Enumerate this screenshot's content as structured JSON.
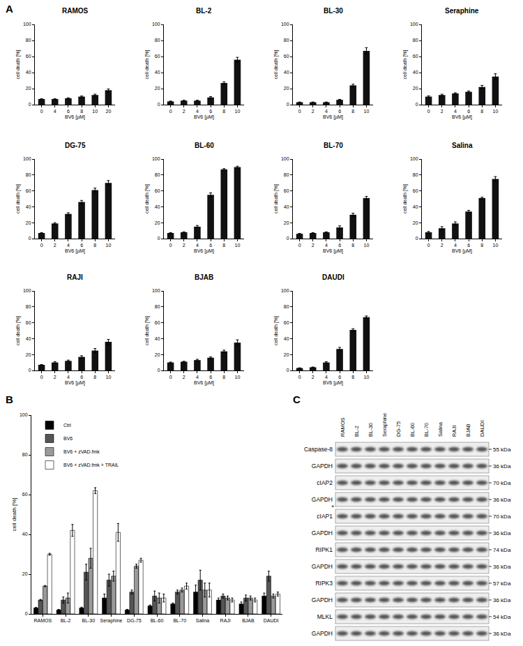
{
  "panel_labels": [
    "A",
    "B",
    "C"
  ],
  "chart_data": [
    {
      "type": "bar",
      "title": "RAMOS",
      "categories": [
        "0",
        "4",
        "6",
        "8",
        "10",
        "20"
      ],
      "values": [
        7,
        7,
        8,
        10,
        12,
        18
      ],
      "errors": [
        0.5,
        0.5,
        0.6,
        0.8,
        1,
        1.5
      ],
      "color": "#111111",
      "x_label": "BV6 [µM]",
      "y_label": "cell death [%]",
      "ylim": [
        0,
        100
      ],
      "yticks": [
        0,
        20,
        40,
        60,
        80,
        100
      ],
      "grid": false
    },
    {
      "type": "bar",
      "title": "BL-2",
      "categories": [
        "0",
        "2",
        "4",
        "6",
        "8",
        "10"
      ],
      "values": [
        4,
        5,
        5,
        9,
        27,
        56
      ],
      "errors": [
        0.5,
        0.5,
        0.5,
        1,
        1.5,
        3
      ],
      "color": "#111111",
      "x_label": "BV6 [µM]",
      "y_label": "cell death [%]",
      "ylim": [
        0,
        100
      ],
      "yticks": [
        0,
        20,
        40,
        60,
        80,
        100
      ],
      "grid": false
    },
    {
      "type": "bar",
      "title": "BL-30",
      "categories": [
        "0",
        "2",
        "4",
        "6",
        "8",
        "10"
      ],
      "values": [
        3,
        3,
        3,
        6,
        24,
        67
      ],
      "errors": [
        0.3,
        0.3,
        0.3,
        0.6,
        1.5,
        4
      ],
      "color": "#111111",
      "x_label": "BV6 [µM]",
      "y_label": "cell death [%]",
      "ylim": [
        0,
        100
      ],
      "yticks": [
        0,
        20,
        40,
        60,
        80,
        100
      ],
      "grid": false
    },
    {
      "type": "bar",
      "title": "Seraphine",
      "categories": [
        "0",
        "2",
        "4",
        "6",
        "8",
        "10"
      ],
      "values": [
        10,
        12,
        14,
        16,
        22,
        35
      ],
      "errors": [
        1,
        1,
        0.8,
        1,
        2,
        3.5
      ],
      "color": "#111111",
      "x_label": "BV6 [µM]",
      "y_label": "cell death [%]",
      "ylim": [
        0,
        100
      ],
      "yticks": [
        0,
        20,
        40,
        60,
        80,
        100
      ],
      "grid": false
    },
    {
      "type": "bar",
      "title": "DG-75",
      "categories": [
        "0",
        "2",
        "4",
        "6",
        "8",
        "10"
      ],
      "values": [
        7,
        19,
        31,
        46,
        61,
        70
      ],
      "errors": [
        0.5,
        1,
        1.5,
        2,
        2.5,
        3
      ],
      "color": "#111111",
      "x_label": "BV6 [µM]",
      "y_label": "cell death [%]",
      "ylim": [
        0,
        100
      ],
      "yticks": [
        0,
        20,
        40,
        60,
        80,
        100
      ],
      "grid": false
    },
    {
      "type": "bar",
      "title": "BL-60",
      "categories": [
        "0",
        "2",
        "4",
        "6",
        "8",
        "10"
      ],
      "values": [
        7,
        8,
        15,
        55,
        87,
        90
      ],
      "errors": [
        0.5,
        0.5,
        1.5,
        2.5,
        1,
        1
      ],
      "color": "#111111",
      "x_label": "BV6 [µM]",
      "y_label": "cell death [%]",
      "ylim": [
        0,
        100
      ],
      "yticks": [
        0,
        20,
        40,
        60,
        80,
        100
      ],
      "grid": false
    },
    {
      "type": "bar",
      "title": "BL-70",
      "categories": [
        "0",
        "2",
        "4",
        "6",
        "8",
        "10"
      ],
      "values": [
        6,
        7,
        8,
        14,
        30,
        51
      ],
      "errors": [
        0.5,
        0.5,
        0.5,
        2,
        2,
        2
      ],
      "color": "#111111",
      "x_label": "BV6 [µM]",
      "y_label": "cell death [%]",
      "ylim": [
        0,
        100
      ],
      "yticks": [
        0,
        20,
        40,
        60,
        80,
        100
      ],
      "grid": false
    },
    {
      "type": "bar",
      "title": "Salina",
      "categories": [
        "0",
        "2",
        "4",
        "6",
        "8",
        "10"
      ],
      "values": [
        8,
        13,
        19,
        34,
        51,
        75
      ],
      "errors": [
        1,
        2,
        2,
        1.5,
        1,
        3
      ],
      "color": "#111111",
      "x_label": "BV6 [µM]",
      "y_label": "cell death [%]",
      "ylim": [
        0,
        100
      ],
      "yticks": [
        0,
        20,
        40,
        60,
        80,
        100
      ],
      "grid": false
    },
    {
      "type": "bar",
      "title": "RAJI",
      "categories": [
        "0",
        "2",
        "4",
        "6",
        "8",
        "10"
      ],
      "values": [
        7,
        10,
        12,
        17,
        25,
        36
      ],
      "errors": [
        0.5,
        1,
        1,
        1.5,
        2.5,
        3
      ],
      "color": "#111111",
      "x_label": "BV6 [µM]",
      "y_label": "cell death [%]",
      "ylim": [
        0,
        100
      ],
      "yticks": [
        0,
        20,
        40,
        60,
        80,
        100
      ],
      "grid": false
    },
    {
      "type": "bar",
      "title": "BJAB",
      "categories": [
        "0",
        "2",
        "4",
        "6",
        "8",
        "10"
      ],
      "values": [
        10,
        11,
        13,
        16,
        24,
        35
      ],
      "errors": [
        0.5,
        0.5,
        1,
        1,
        1.5,
        3.5
      ],
      "color": "#111111",
      "x_label": "BV6 [µM]",
      "y_label": "cell death [%]",
      "ylim": [
        0,
        100
      ],
      "yticks": [
        0,
        20,
        40,
        60,
        80,
        100
      ],
      "grid": false
    },
    {
      "type": "bar",
      "title": "DAUDI",
      "categories": [
        "0",
        "2",
        "4",
        "6",
        "8",
        "10"
      ],
      "values": [
        3,
        4,
        10,
        27,
        51,
        67
      ],
      "errors": [
        0.3,
        0.3,
        1,
        2,
        1.5,
        1.5
      ],
      "color": "#111111",
      "x_label": "BV6 [µM]",
      "y_label": "cell death [%]",
      "ylim": [
        0,
        100
      ],
      "yticks": [
        0,
        20,
        40,
        60,
        80,
        100
      ],
      "grid": false
    },
    {
      "type": "bar",
      "categories": [
        "RAMOS",
        "BL-2",
        "BL-30",
        "Seraphine",
        "DG-75",
        "BL-60",
        "BL-70",
        "Salina",
        "RAJI",
        "BJAB",
        "DAUDI"
      ],
      "series": [
        {
          "name": "Ctrl",
          "color": "#000000",
          "values": [
            3,
            2,
            3,
            8,
            2,
            4,
            5,
            11,
            7,
            5,
            9
          ],
          "errors": [
            0.3,
            0.3,
            0.4,
            2,
            0.3,
            0.5,
            0.5,
            3.5,
            1,
            1,
            1.5
          ]
        },
        {
          "name": "BV6",
          "color": "#555555",
          "values": [
            7,
            7,
            21,
            17,
            11,
            9,
            11,
            17,
            9,
            8,
            19
          ],
          "errors": [
            0.3,
            1.5,
            4,
            3,
            1,
            2.5,
            1,
            5,
            1,
            1.5,
            2.5
          ]
        },
        {
          "name": "BV6 + zVAD.fmk",
          "color": "#9a9a9a",
          "values": [
            14,
            8,
            28,
            19,
            24,
            8,
            12,
            12,
            8,
            8,
            9
          ],
          "errors": [
            0.3,
            2.5,
            5,
            2.5,
            1,
            2.5,
            1,
            3.5,
            1,
            1,
            1
          ]
        },
        {
          "name": "BV6 + zVAD.fmk + TRAIL",
          "color": "#ffffff",
          "values": [
            30,
            42,
            62,
            41,
            27,
            8,
            14,
            12,
            7,
            7,
            10
          ],
          "errors": [
            0.5,
            3,
            1.5,
            4.5,
            1,
            2,
            1.5,
            3.5,
            1,
            1,
            1
          ]
        }
      ],
      "y_label": "cell death [%]",
      "ylim": [
        0,
        100
      ],
      "yticks": [
        0,
        20,
        40,
        60,
        80,
        100
      ],
      "grid": false,
      "legend": "upper left"
    }
  ],
  "blot": {
    "lanes": [
      "RAMOS",
      "BL-2",
      "BL-30",
      "Seraphine",
      "DG-75",
      "BL-60",
      "BL-70",
      "Salina",
      "RAJI",
      "BJAB",
      "DAUDI"
    ],
    "rows": [
      {
        "label": "Caspase-8",
        "kda": "55 kDa"
      },
      {
        "label": "GAPDH",
        "kda": "36 kDa"
      },
      {
        "label": "cIAP2",
        "kda": "70 kDa"
      },
      {
        "label": "GAPDH",
        "kda": "36 kDa"
      },
      {
        "label": "cIAP1",
        "kda": "70 kDa",
        "note": "*"
      },
      {
        "label": "GAPDH",
        "kda": "36 kDa"
      },
      {
        "label": "RIPK1",
        "kda": "74 kDa"
      },
      {
        "label": "GAPDH",
        "kda": "36 kDa"
      },
      {
        "label": "RIPK3",
        "kda": "57 kDa"
      },
      {
        "label": "GAPDH",
        "kda": "36 kDa"
      },
      {
        "label": "MLKL",
        "kda": "54 kDa"
      },
      {
        "label": "GAPDH",
        "kda": "36 kDa"
      }
    ]
  }
}
